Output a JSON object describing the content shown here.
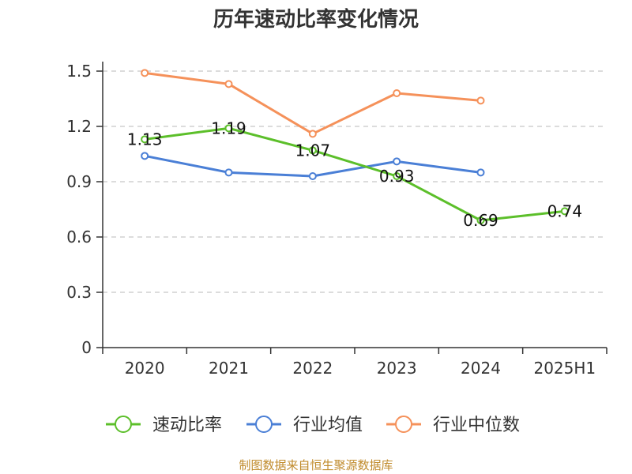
{
  "chart_data": {
    "type": "line",
    "title": "历年速动比率变化情况",
    "categories": [
      "2020",
      "2021",
      "2022",
      "2023",
      "2024",
      "2025H1"
    ],
    "yticks": [
      "0",
      "0.3",
      "0.6",
      "0.9",
      "1.2",
      "1.5"
    ],
    "ylim": [
      0,
      1.5
    ],
    "grid": true,
    "legend_position": "bottom",
    "series": [
      {
        "name": "速动比率",
        "color": "#5cbf2a",
        "values": [
          1.13,
          1.19,
          1.07,
          0.93,
          0.69,
          0.74
        ],
        "labels": [
          "1.13",
          "1.19",
          "1.07",
          "0.93",
          "0.69",
          "0.74"
        ]
      },
      {
        "name": "行业均值",
        "color": "#4a7fd6",
        "values": [
          1.04,
          0.95,
          0.93,
          1.01,
          0.95,
          null
        ]
      },
      {
        "name": "行业中位数",
        "color": "#f5915a",
        "values": [
          1.49,
          1.43,
          1.16,
          1.38,
          1.34,
          null
        ]
      }
    ]
  },
  "footer": {
    "source": "制图数据来自恒生聚源数据库"
  }
}
